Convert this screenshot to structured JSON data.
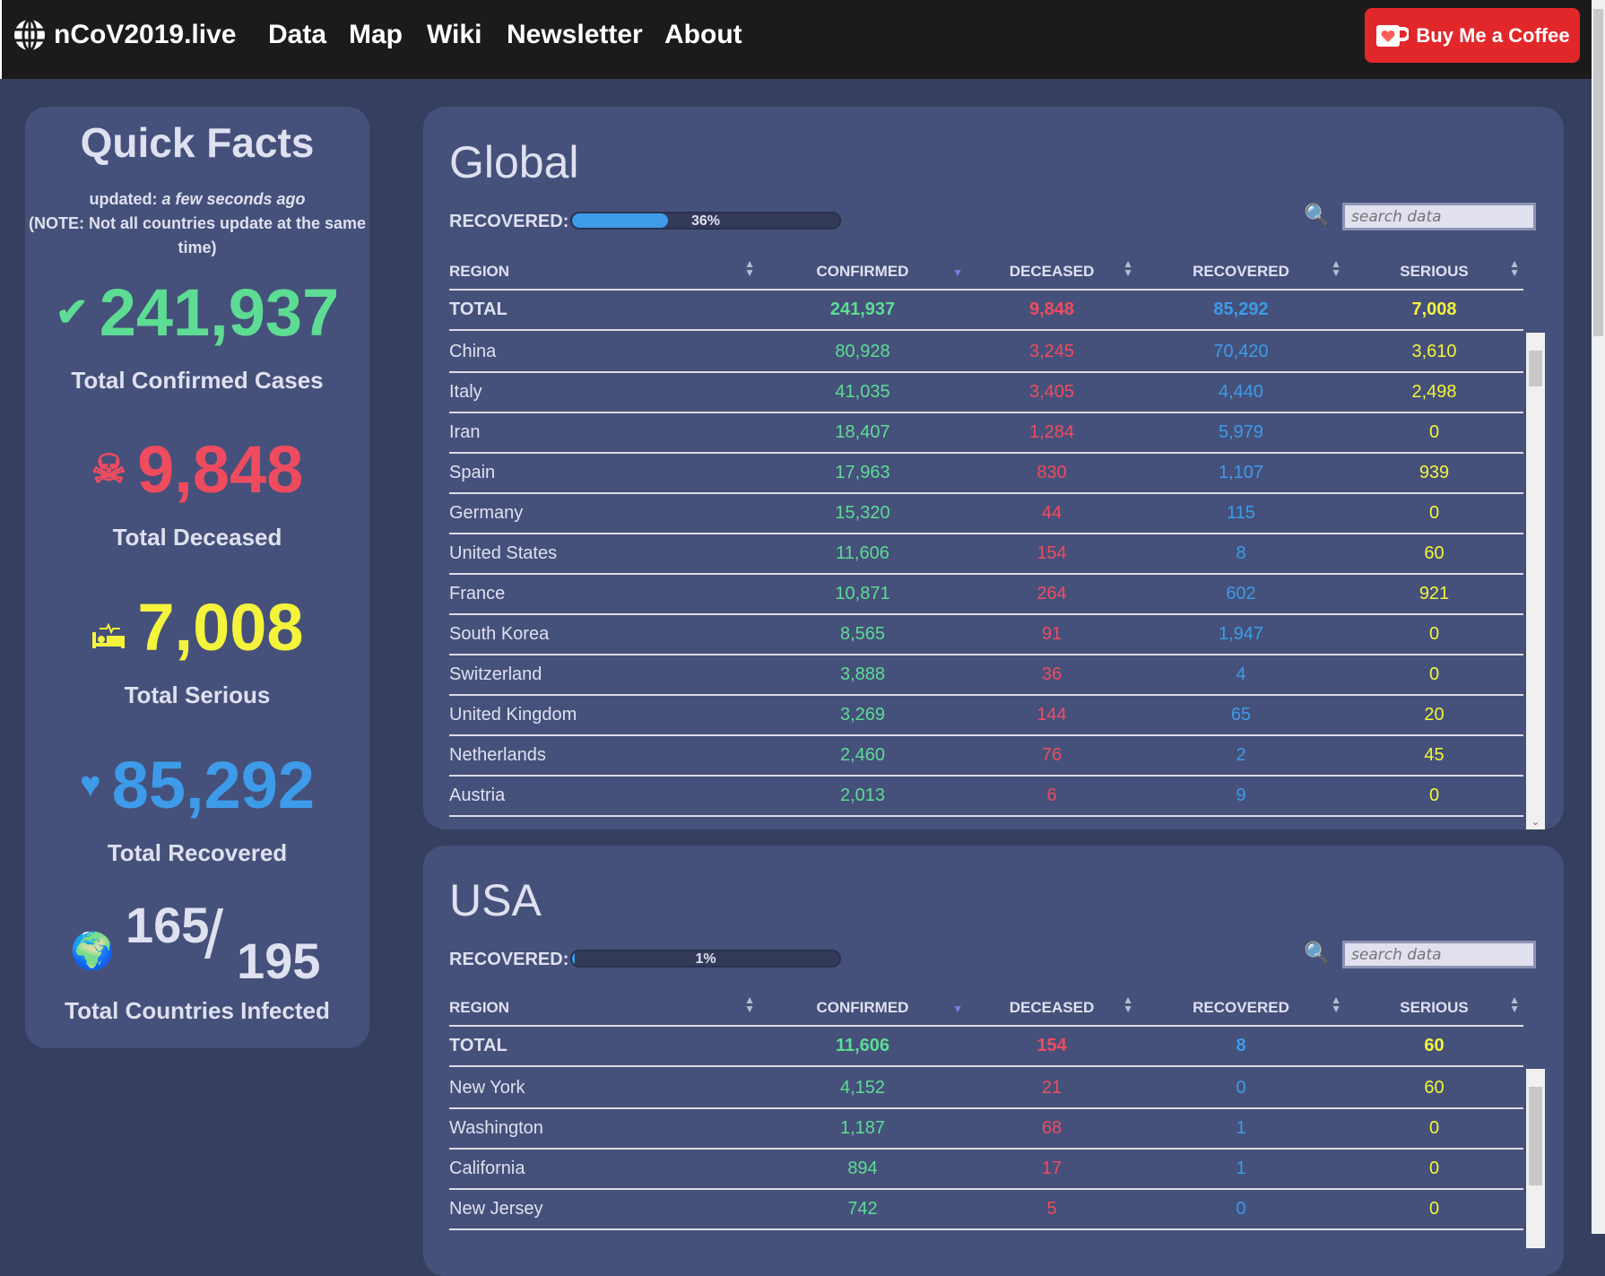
{
  "header": {
    "brand": "nCoV2019.live",
    "nav": [
      "Data",
      "Map",
      "Wiki",
      "Newsletter",
      "About"
    ],
    "coffee": "Buy Me a Coffee"
  },
  "quick_facts": {
    "title": "Quick Facts",
    "updated_label": "updated:",
    "updated_value": "a few seconds ago",
    "note_line1": "(NOTE: Not all countries update at the same",
    "note_line2": "time)",
    "confirmed": "241,937",
    "confirmed_label": "Total Confirmed Cases",
    "deceased": "9,848",
    "deceased_label": "Total Deceased",
    "serious": "7,008",
    "serious_label": "Total Serious",
    "recovered": "85,292",
    "recovered_label": "Total Recovered",
    "countries_infected": "165",
    "countries_total": "195",
    "countries_label": "Total Countries Infected"
  },
  "columns": [
    "REGION",
    "CONFIRMED",
    "DECEASED",
    "RECOVERED",
    "SERIOUS"
  ],
  "colors": {
    "confirmed": "#5ddc93",
    "deceased": "#ef4b5f",
    "recovered": "#3d9be9",
    "serious": "#f4f43c"
  },
  "global": {
    "title": "Global",
    "recovered_label": "RECOVERED:",
    "recovered_pct": 36,
    "recovered_text": "36%",
    "search_placeholder": "search data",
    "total": [
      "TOTAL",
      "241,937",
      "9,848",
      "85,292",
      "7,008"
    ],
    "rows": [
      [
        "China",
        "80,928",
        "3,245",
        "70,420",
        "3,610"
      ],
      [
        "Italy",
        "41,035",
        "3,405",
        "4,440",
        "2,498"
      ],
      [
        "Iran",
        "18,407",
        "1,284",
        "5,979",
        "0"
      ],
      [
        "Spain",
        "17,963",
        "830",
        "1,107",
        "939"
      ],
      [
        "Germany",
        "15,320",
        "44",
        "115",
        "0"
      ],
      [
        "United States",
        "11,606",
        "154",
        "8",
        "60"
      ],
      [
        "France",
        "10,871",
        "264",
        "602",
        "921"
      ],
      [
        "South Korea",
        "8,565",
        "91",
        "1,947",
        "0"
      ],
      [
        "Switzerland",
        "3,888",
        "36",
        "4",
        "0"
      ],
      [
        "United Kingdom",
        "3,269",
        "144",
        "65",
        "20"
      ],
      [
        "Netherlands",
        "2,460",
        "76",
        "2",
        "45"
      ],
      [
        "Austria",
        "2,013",
        "6",
        "9",
        "0"
      ]
    ]
  },
  "usa": {
    "title": "USA",
    "recovered_label": "RECOVERED:",
    "recovered_pct": 1,
    "recovered_text": "1%",
    "search_placeholder": "search data",
    "total": [
      "TOTAL",
      "11,606",
      "154",
      "8",
      "60"
    ],
    "rows": [
      [
        "New York",
        "4,152",
        "21",
        "0",
        "60"
      ],
      [
        "Washington",
        "1,187",
        "68",
        "1",
        "0"
      ],
      [
        "California",
        "894",
        "17",
        "1",
        "0"
      ],
      [
        "New Jersey",
        "742",
        "5",
        "0",
        "0"
      ]
    ]
  }
}
